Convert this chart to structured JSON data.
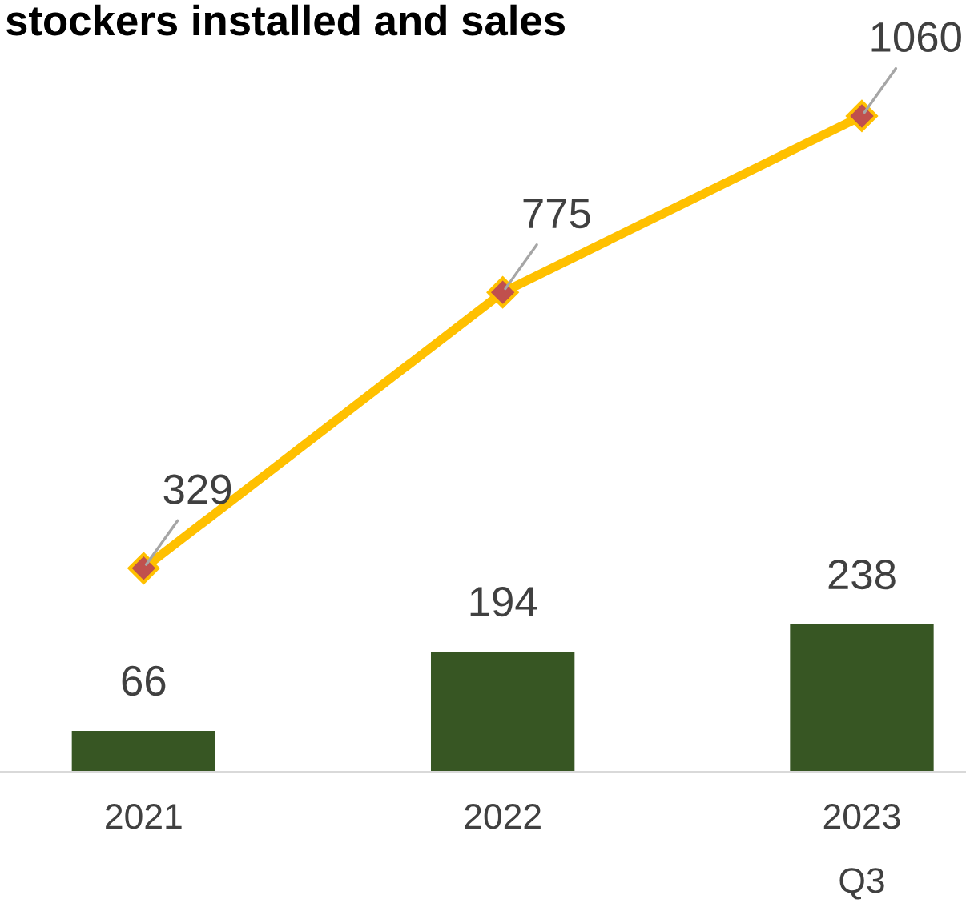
{
  "chart_data": {
    "type": "bar",
    "title": "stockers installed and sales",
    "categories": [
      "2021",
      "2022",
      "2023\nQ3"
    ],
    "series": [
      {
        "color": "#375623",
        "values": [
          66,
          194,
          238
        ]
      },
      {
        "type": "line",
        "color": "#ffc000",
        "values": [
          329,
          775,
          1060
        ],
        "marker": "diamond"
      }
    ],
    "data_labels": true,
    "grid": false,
    "legend": false
  }
}
